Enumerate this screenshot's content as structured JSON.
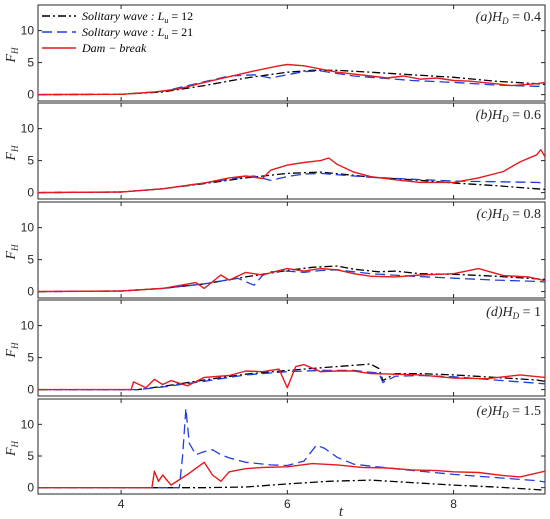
{
  "figure": {
    "xlabel": "t",
    "ylabel_main": "F",
    "ylabel_sub": "H"
  },
  "legend": [
    {
      "text": "Solitary wave :  L",
      "sub": "u",
      "tail": " = 12",
      "color": "#000000",
      "dash": "8,3,2,3"
    },
    {
      "text": "Solitary wave :  L",
      "sub": "u",
      "tail": " = 21",
      "color": "#1f3ee0",
      "dash": "10,5"
    },
    {
      "text": "Dam − break",
      "sub": "",
      "tail": "",
      "color": "#e41a1c",
      "dash": ""
    }
  ],
  "colors": {
    "sol12": "#000000",
    "sol21": "#1f3ee0",
    "dam": "#e41a1c",
    "axis": "#262626"
  },
  "chart_data": [
    {
      "type": "line",
      "title": "(a)H_D = 0.4",
      "title_parts": [
        "(a)H",
        "D",
        " = 0.4"
      ],
      "xlim": [
        3,
        9.1
      ],
      "ylim": [
        -1,
        14
      ],
      "xticks": [
        4,
        6,
        8
      ],
      "yticks": [
        0,
        5,
        10
      ],
      "series": [
        {
          "name": "Solitary wave : L_u = 12",
          "x": [
            3,
            4,
            4.5,
            5,
            5.5,
            6,
            6.3,
            6.6,
            7,
            7.5,
            8,
            8.5,
            9,
            9.1
          ],
          "y": [
            0,
            0.05,
            0.4,
            1.4,
            2.6,
            3.5,
            3.8,
            3.8,
            3.5,
            3.1,
            2.7,
            2.1,
            1.7,
            1.6
          ]
        },
        {
          "name": "Solitary wave : L_u = 21",
          "x": [
            3,
            4,
            4.5,
            5,
            5.3,
            5.6,
            5.8,
            6.0,
            6.2,
            6.4,
            6.6,
            6.8,
            7,
            7.5,
            8,
            8.5,
            9,
            9.1
          ],
          "y": [
            0,
            0.05,
            0.5,
            2.0,
            2.9,
            3.1,
            2.6,
            3.1,
            3.6,
            3.7,
            3.3,
            2.9,
            2.7,
            2.2,
            1.9,
            1.5,
            1.3,
            1.3
          ]
        },
        {
          "name": "Dam − break",
          "x": [
            3,
            4,
            4.4,
            4.7,
            5,
            5.3,
            5.6,
            5.9,
            6.0,
            6.2,
            6.4,
            6.6,
            6.8,
            7,
            7.2,
            7.4,
            7.6,
            7.8,
            8,
            8.2,
            8.5,
            8.7,
            9,
            9.1
          ],
          "y": [
            0,
            0.05,
            0.4,
            0.9,
            1.9,
            2.8,
            3.7,
            4.5,
            4.7,
            4.5,
            4.0,
            3.5,
            3.2,
            2.9,
            2.6,
            2.9,
            2.4,
            2.6,
            2.2,
            2.1,
            1.7,
            1.4,
            1.7,
            1.9
          ]
        }
      ]
    },
    {
      "type": "line",
      "title": "(b)H_D = 0.6",
      "title_parts": [
        "(b)H",
        "D",
        " = 0.6"
      ],
      "xlim": [
        3,
        9.1
      ],
      "ylim": [
        -1,
        14
      ],
      "xticks": [
        4,
        6,
        8
      ],
      "yticks": [
        0,
        5,
        10
      ],
      "series": [
        {
          "name": "Solitary wave : L_u = 12",
          "x": [
            3,
            4,
            4.5,
            5,
            5.5,
            6,
            6.4,
            6.8,
            7,
            7.5,
            8,
            8.5,
            9,
            9.1
          ],
          "y": [
            0,
            0.1,
            0.6,
            1.4,
            2.3,
            3.0,
            3.2,
            2.7,
            2.4,
            2.0,
            1.5,
            1.1,
            0.6,
            0.5
          ]
        },
        {
          "name": "Solitary wave : L_u = 21",
          "x": [
            3,
            4,
            4.5,
            5,
            5.4,
            5.6,
            5.8,
            6.0,
            6.2,
            6.4,
            6.6,
            6.8,
            7,
            7.5,
            8,
            8.5,
            9,
            9.1
          ],
          "y": [
            0,
            0.1,
            0.6,
            1.5,
            2.3,
            2.6,
            1.9,
            2.5,
            2.9,
            3.0,
            2.8,
            2.6,
            2.4,
            2.1,
            1.8,
            1.7,
            1.6,
            1.5
          ]
        },
        {
          "name": "Dam − break",
          "x": [
            3,
            4,
            4.5,
            5,
            5.3,
            5.5,
            5.7,
            5.8,
            6.0,
            6.2,
            6.4,
            6.5,
            6.6,
            6.8,
            7,
            7.3,
            7.6,
            8,
            8.3,
            8.6,
            8.8,
            9,
            9.05,
            9.1
          ],
          "y": [
            0,
            0.1,
            0.6,
            1.5,
            2.3,
            2.6,
            2.2,
            3.5,
            4.3,
            4.7,
            5.0,
            5.4,
            4.4,
            3.2,
            2.5,
            2.0,
            1.6,
            1.6,
            2.3,
            3.3,
            4.8,
            5.9,
            6.7,
            5.6
          ]
        }
      ]
    },
    {
      "type": "line",
      "title": "(c)H_D = 0.8",
      "title_parts": [
        "(c)H",
        "D",
        " = 0.8"
      ],
      "xlim": [
        3,
        9.1
      ],
      "ylim": [
        -1,
        14
      ],
      "xticks": [
        4,
        6,
        8
      ],
      "yticks": [
        0,
        5,
        10
      ],
      "series": [
        {
          "name": "Solitary wave : L_u = 12",
          "x": [
            3,
            4,
            4.5,
            5,
            5.5,
            6,
            6.3,
            6.6,
            6.8,
            7.1,
            7.3,
            7.6,
            8,
            8.5,
            9,
            9.1
          ],
          "y": [
            0,
            0.1,
            0.5,
            1.2,
            2.3,
            3.3,
            3.8,
            4.0,
            3.5,
            3.1,
            3.2,
            2.8,
            2.7,
            2.4,
            2.0,
            1.9
          ]
        },
        {
          "name": "Solitary wave : L_u = 21",
          "x": [
            3,
            4,
            4.5,
            5,
            5.4,
            5.6,
            5.7,
            5.8,
            6.0,
            6.2,
            6.4,
            6.6,
            6.8,
            7,
            7.5,
            8,
            8.5,
            9,
            9.1
          ],
          "y": [
            0,
            0.1,
            0.5,
            1.2,
            2.1,
            1.0,
            2.5,
            3.1,
            3.2,
            3.0,
            3.3,
            3.4,
            3.1,
            2.8,
            2.4,
            2.1,
            1.8,
            1.6,
            1.5
          ]
        },
        {
          "name": "Dam − break",
          "x": [
            3,
            4,
            4.5,
            4.9,
            5.0,
            5.2,
            5.3,
            5.5,
            5.7,
            5.9,
            6.0,
            6.2,
            6.4,
            6.6,
            6.8,
            7,
            7.3,
            7.6,
            8,
            8.3,
            8.6,
            8.9,
            9.1
          ],
          "y": [
            0,
            0.1,
            0.5,
            1.4,
            0.5,
            2.6,
            1.8,
            3.0,
            2.6,
            3.3,
            3.6,
            3.2,
            3.6,
            3.4,
            2.8,
            2.4,
            2.3,
            2.6,
            2.8,
            3.6,
            2.5,
            2.3,
            1.7
          ]
        }
      ]
    },
    {
      "type": "line",
      "title": "(d)H_D = 1",
      "title_parts": [
        "(d)H",
        "D",
        " = 1"
      ],
      "xlim": [
        3,
        9.1
      ],
      "ylim": [
        -1,
        14
      ],
      "xticks": [
        4,
        6,
        8
      ],
      "yticks": [
        0,
        5,
        10
      ],
      "series": [
        {
          "name": "Solitary wave : L_u = 12",
          "x": [
            3,
            4.2,
            4.5,
            5,
            5.5,
            6,
            6.4,
            6.8,
            7.0,
            7.1,
            7.15,
            7.3,
            7.6,
            8,
            8.5,
            9,
            9.1
          ],
          "y": [
            0,
            0,
            0.5,
            1.5,
            2.4,
            3.0,
            3.4,
            3.8,
            4.0,
            3.3,
            1.4,
            2.5,
            2.5,
            2.3,
            1.9,
            1.5,
            1.3
          ]
        },
        {
          "name": "Solitary wave : L_u = 21",
          "x": [
            3,
            4.2,
            4.5,
            5,
            5.5,
            6,
            6.4,
            6.8,
            7.0,
            7.1,
            7.15,
            7.3,
            7.6,
            8,
            8.5,
            9,
            9.1
          ],
          "y": [
            0,
            0,
            0.4,
            1.3,
            2.3,
            2.8,
            3.0,
            3.0,
            2.7,
            2.6,
            1.1,
            2.1,
            2.2,
            2.0,
            1.5,
            1.0,
            0.9
          ]
        },
        {
          "name": "Dam − break",
          "x": [
            3,
            4.12,
            4.15,
            4.3,
            4.4,
            4.5,
            4.6,
            4.8,
            5.0,
            5.3,
            5.5,
            5.7,
            5.9,
            6.0,
            6.1,
            6.2,
            6.4,
            6.6,
            6.8,
            7,
            7.3,
            7.6,
            8,
            8.4,
            8.8,
            9.1
          ],
          "y": [
            0,
            0,
            1.2,
            0.3,
            1.6,
            0.8,
            1.4,
            0.6,
            1.9,
            2.2,
            2.9,
            2.8,
            3.2,
            0.3,
            3.6,
            3.9,
            2.8,
            2.9,
            2.9,
            2.5,
            2.4,
            2.3,
            1.8,
            1.7,
            2.3,
            1.9
          ]
        }
      ]
    },
    {
      "type": "line",
      "title": "(e)H_D = 1.5",
      "title_parts": [
        "(e)H",
        "D",
        " = 1.5"
      ],
      "xlim": [
        3,
        9.1
      ],
      "ylim": [
        -1,
        14
      ],
      "xticks": [
        4,
        6,
        8
      ],
      "yticks": [
        0,
        5,
        10
      ],
      "series": [
        {
          "name": "Solitary wave : L_u = 12",
          "x": [
            3,
            4.5,
            5,
            5.5,
            6,
            6.5,
            7,
            7.5,
            8,
            8.5,
            9,
            9.1
          ],
          "y": [
            0,
            0,
            0,
            0.1,
            0.6,
            1.0,
            1.2,
            0.8,
            0.4,
            0.1,
            -0.3,
            -0.4
          ]
        },
        {
          "name": "Solitary wave : L_u = 21",
          "x": [
            3,
            4.7,
            4.74,
            4.78,
            4.82,
            4.9,
            5.0,
            5.1,
            5.2,
            5.3,
            5.5,
            5.8,
            6.0,
            6.2,
            6.35,
            6.45,
            6.6,
            6.8,
            7,
            7.3,
            7.6,
            8,
            8.5,
            9,
            9.1
          ],
          "y": [
            0,
            0,
            5.0,
            12.5,
            7.0,
            5.2,
            5.7,
            6.0,
            5.2,
            4.7,
            4.0,
            3.6,
            3.5,
            4.2,
            6.7,
            6.2,
            4.8,
            3.7,
            3.4,
            3.0,
            2.6,
            2.1,
            1.6,
            1.1,
            0.9
          ]
        },
        {
          "name": "Dam − break",
          "x": [
            3,
            4.37,
            4.4,
            4.45,
            4.5,
            4.6,
            4.8,
            5.0,
            5.1,
            5.2,
            5.3,
            5.5,
            5.7,
            6.0,
            6.3,
            6.6,
            6.9,
            7.2,
            7.5,
            7.8,
            8,
            8.3,
            8.6,
            8.8,
            9.1
          ],
          "y": [
            0,
            0,
            2.6,
            1.0,
            2.0,
            0.4,
            2.1,
            4.0,
            2.0,
            1.0,
            2.5,
            3.0,
            3.2,
            3.3,
            3.8,
            3.6,
            3.2,
            3.1,
            2.8,
            2.7,
            2.5,
            2.4,
            1.9,
            1.7,
            2.6
          ]
        }
      ]
    }
  ]
}
